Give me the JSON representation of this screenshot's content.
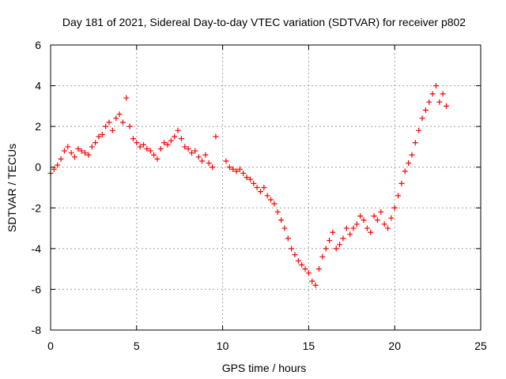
{
  "chart_data": {
    "type": "scatter",
    "title": "Day 181 of 2021, Sidereal Day-to-day VTEC variation (SDTVAR) for receiver p802",
    "xlabel": "GPS time / hours",
    "ylabel": "SDTVAR / TECUs",
    "xlim": [
      0,
      25
    ],
    "ylim": [
      -8,
      6
    ],
    "xticks": [
      0,
      5,
      10,
      15,
      20,
      25
    ],
    "yticks": [
      -8,
      -6,
      -4,
      -2,
      0,
      2,
      4,
      6
    ],
    "xtick_labels": [
      "0",
      "5",
      "10",
      "15",
      "20",
      "25"
    ],
    "ytick_labels": [
      "-8",
      "-6",
      "-4",
      "-2",
      "0",
      "2",
      "4",
      "6"
    ],
    "grid": true,
    "marker": "+",
    "marker_color": "#ff0000",
    "series": [
      {
        "name": "SDTVAR",
        "x": [
          0.0,
          0.2,
          0.4,
          0.6,
          0.8,
          1.0,
          1.2,
          1.4,
          1.6,
          1.8,
          2.0,
          2.2,
          2.4,
          2.6,
          2.8,
          3.0,
          3.2,
          3.4,
          3.6,
          3.8,
          4.0,
          4.2,
          4.4,
          4.6,
          4.8,
          5.0,
          5.2,
          5.4,
          5.6,
          5.8,
          6.0,
          6.2,
          6.4,
          6.6,
          6.8,
          7.0,
          7.2,
          7.4,
          7.6,
          7.8,
          8.0,
          8.2,
          8.4,
          8.6,
          8.8,
          9.0,
          9.2,
          9.4,
          9.6,
          10.2,
          10.4,
          10.6,
          10.8,
          11.0,
          11.2,
          11.4,
          11.6,
          11.8,
          12.0,
          12.2,
          12.4,
          12.6,
          12.8,
          13.0,
          13.2,
          13.4,
          13.6,
          13.8,
          14.0,
          14.2,
          14.4,
          14.6,
          14.8,
          15.0,
          15.2,
          15.4,
          15.6,
          15.8,
          16.0,
          16.2,
          16.4,
          16.6,
          16.8,
          17.0,
          17.2,
          17.4,
          17.6,
          17.8,
          18.0,
          18.2,
          18.4,
          18.6,
          18.8,
          19.0,
          19.2,
          19.4,
          19.6,
          19.8,
          20.0,
          20.2,
          20.4,
          20.6,
          20.8,
          21.0,
          21.2,
          21.4,
          21.6,
          21.8,
          22.0,
          22.2,
          22.4,
          22.6,
          22.8,
          23.0
        ],
        "y": [
          -0.3,
          -0.1,
          0.1,
          0.4,
          0.8,
          1.0,
          0.7,
          0.5,
          0.9,
          0.8,
          0.7,
          0.6,
          1.0,
          1.2,
          1.5,
          1.6,
          2.0,
          2.2,
          1.8,
          2.4,
          2.6,
          2.2,
          3.4,
          2.0,
          1.4,
          1.2,
          1.0,
          1.1,
          0.9,
          0.8,
          0.6,
          0.4,
          0.9,
          1.2,
          1.1,
          1.3,
          1.5,
          1.8,
          1.4,
          1.0,
          0.9,
          0.7,
          0.8,
          0.5,
          0.3,
          0.6,
          0.2,
          0.0,
          1.5,
          0.3,
          0.0,
          -0.1,
          -0.2,
          -0.1,
          -0.3,
          -0.5,
          -0.6,
          -0.8,
          -1.0,
          -1.2,
          -1.0,
          -1.4,
          -1.6,
          -1.8,
          -2.2,
          -2.6,
          -3.0,
          -3.5,
          -4.0,
          -4.3,
          -4.6,
          -4.8,
          -5.0,
          -5.2,
          -5.6,
          -5.8,
          -5.0,
          -4.4,
          -4.0,
          -3.6,
          -3.2,
          -4.0,
          -3.8,
          -3.5,
          -3.0,
          -3.3,
          -3.0,
          -2.8,
          -2.4,
          -2.6,
          -3.0,
          -3.2,
          -2.4,
          -2.6,
          -2.2,
          -2.8,
          -3.0,
          -2.5,
          -2.0,
          -1.4,
          -0.8,
          -0.2,
          0.2,
          0.6,
          1.2,
          1.8,
          2.4,
          2.8,
          3.2,
          3.6,
          4.0,
          3.2,
          3.6,
          3.0
        ]
      }
    ]
  }
}
